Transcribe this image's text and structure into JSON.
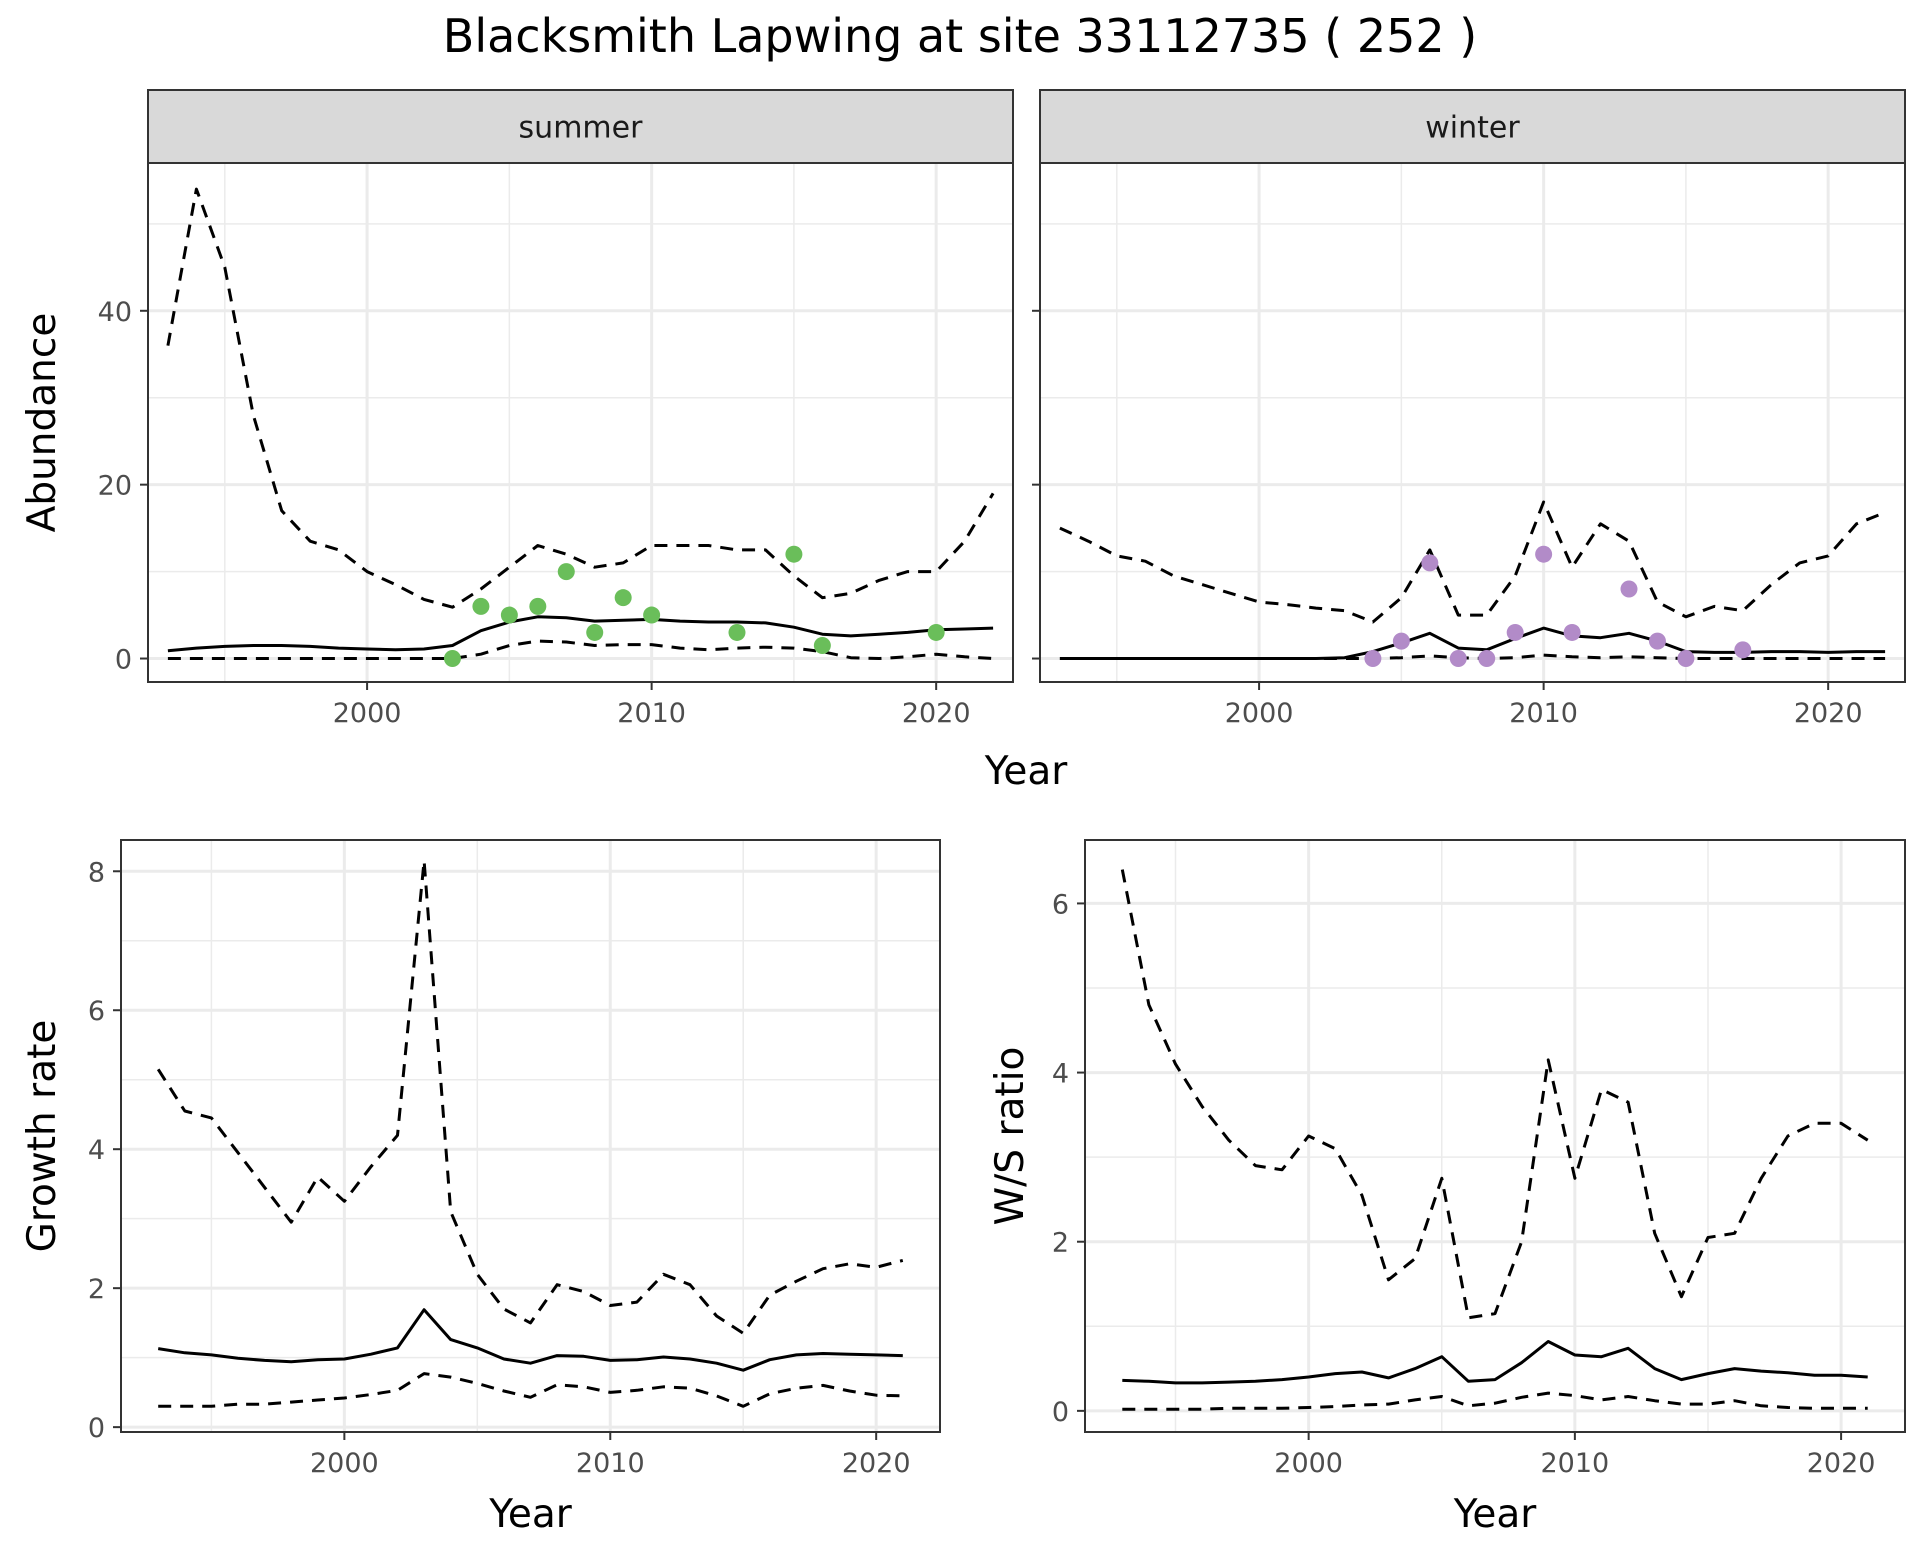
{
  "title": "Blacksmith Lapwing at site 33112735 ( 252 )",
  "colors": {
    "summer_points": "#6ABE5A",
    "winter_points": "#B28BC8",
    "line": "#000000",
    "grid": "#ebebeb",
    "strip_bg": "#d9d9d9"
  },
  "chart_data": [
    {
      "type": "line",
      "panel": "abundance-summer",
      "facet": "summer",
      "xlabel": "Year",
      "ylabel": "Abundance",
      "xlim": [
        1992.3,
        2022.7
      ],
      "ylim": [
        -2.7,
        57
      ],
      "xticks": [
        2000,
        2010,
        2020
      ],
      "yticks": [
        0,
        20,
        40
      ],
      "grid": true,
      "series": [
        {
          "role": "mean",
          "style": "solid",
          "x": [
            1993,
            1994,
            1995,
            1996,
            1997,
            1998,
            1999,
            2000,
            2001,
            2002,
            2003,
            2004,
            2005,
            2006,
            2007,
            2008,
            2009,
            2010,
            2011,
            2012,
            2013,
            2014,
            2015,
            2016,
            2017,
            2018,
            2019,
            2020,
            2021,
            2022
          ],
          "y": [
            0.9,
            1.2,
            1.4,
            1.5,
            1.5,
            1.4,
            1.2,
            1.1,
            1.0,
            1.1,
            1.5,
            3.2,
            4.2,
            4.8,
            4.7,
            4.3,
            4.4,
            4.5,
            4.3,
            4.2,
            4.2,
            4.1,
            3.6,
            2.8,
            2.6,
            2.8,
            3.0,
            3.3,
            3.4,
            3.5
          ]
        },
        {
          "role": "upper",
          "style": "dashed",
          "x": [
            1993,
            1994,
            1995,
            1996,
            1997,
            1998,
            1999,
            2000,
            2001,
            2002,
            2003,
            2004,
            2005,
            2006,
            2007,
            2008,
            2009,
            2010,
            2011,
            2012,
            2013,
            2014,
            2015,
            2016,
            2017,
            2018,
            2019,
            2020,
            2021,
            2022
          ],
          "y": [
            36,
            54,
            45,
            28,
            17,
            13.5,
            12.5,
            10,
            8.5,
            6.8,
            5.9,
            8.0,
            10.5,
            13,
            12,
            10.5,
            11,
            13,
            13,
            13,
            12.5,
            12.5,
            9.5,
            7,
            7.5,
            9,
            10,
            10,
            13.5,
            19
          ]
        },
        {
          "role": "lower",
          "style": "dashed",
          "x": [
            1993,
            1994,
            1995,
            1996,
            1997,
            1998,
            1999,
            2000,
            2001,
            2002,
            2003,
            2004,
            2005,
            2006,
            2007,
            2008,
            2009,
            2010,
            2011,
            2012,
            2013,
            2014,
            2015,
            2016,
            2017,
            2018,
            2019,
            2020,
            2021,
            2022
          ],
          "y": [
            0,
            0,
            0,
            0,
            0,
            0,
            0,
            0,
            0,
            0,
            0,
            0.5,
            1.5,
            2,
            1.9,
            1.5,
            1.6,
            1.6,
            1.2,
            1.0,
            1.2,
            1.3,
            1.2,
            0.8,
            0.1,
            0,
            0.2,
            0.5,
            0.2,
            0
          ]
        }
      ],
      "points": {
        "x": [
          2003,
          2004,
          2005,
          2006,
          2007,
          2008,
          2009,
          2010,
          2013,
          2015,
          2016,
          2020
        ],
        "y": [
          0,
          6,
          5,
          6,
          10,
          3,
          7,
          5,
          3,
          12,
          1.5,
          3
        ]
      }
    },
    {
      "type": "line",
      "panel": "abundance-winter",
      "facet": "winter",
      "xlabel": "Year",
      "ylabel": "Abundance",
      "xlim": [
        1992.3,
        2022.7
      ],
      "ylim": [
        -2.7,
        57
      ],
      "xticks": [
        2000,
        2010,
        2020
      ],
      "yticks": [
        0,
        20,
        40
      ],
      "grid": true,
      "series": [
        {
          "role": "mean",
          "style": "solid",
          "x": [
            1993,
            1994,
            1995,
            1996,
            1997,
            1998,
            1999,
            2000,
            2001,
            2002,
            2003,
            2004,
            2005,
            2006,
            2007,
            2008,
            2009,
            2010,
            2011,
            2012,
            2013,
            2014,
            2015,
            2016,
            2017,
            2018,
            2019,
            2020,
            2021,
            2022
          ],
          "y": [
            0,
            0,
            0,
            0,
            0,
            0,
            0,
            0,
            0,
            0,
            0.1,
            0.8,
            1.8,
            2.9,
            1.2,
            1.0,
            2.3,
            3.5,
            2.6,
            2.4,
            2.9,
            2.0,
            0.8,
            0.7,
            0.7,
            0.8,
            0.8,
            0.7,
            0.8,
            0.8
          ]
        },
        {
          "role": "upper",
          "style": "dashed",
          "x": [
            1993,
            1994,
            1995,
            1996,
            1997,
            1998,
            1999,
            2000,
            2001,
            2002,
            2003,
            2004,
            2005,
            2006,
            2007,
            2008,
            2009,
            2010,
            2011,
            2012,
            2013,
            2014,
            2015,
            2016,
            2017,
            2018,
            2019,
            2020,
            2021,
            2022
          ],
          "y": [
            15,
            13.5,
            11.8,
            11.2,
            9.5,
            8.5,
            7.5,
            6.5,
            6.2,
            5.8,
            5.5,
            4.2,
            7.0,
            12.5,
            5.0,
            5.0,
            9.5,
            18,
            10.5,
            15.5,
            13.5,
            6.5,
            4.8,
            6.0,
            5.5,
            8.5,
            11,
            11.8,
            15.5,
            16.8
          ]
        },
        {
          "role": "lower",
          "style": "dashed",
          "x": [
            1993,
            1994,
            1995,
            1996,
            1997,
            1998,
            1999,
            2000,
            2001,
            2002,
            2003,
            2004,
            2005,
            2006,
            2007,
            2008,
            2009,
            2010,
            2011,
            2012,
            2013,
            2014,
            2015,
            2016,
            2017,
            2018,
            2019,
            2020,
            2021,
            2022
          ],
          "y": [
            0,
            0,
            0,
            0,
            0,
            0,
            0,
            0,
            0,
            0,
            0,
            0,
            0.1,
            0.3,
            0.1,
            0,
            0.1,
            0.4,
            0.2,
            0.1,
            0.2,
            0.1,
            0,
            0,
            0,
            0,
            0,
            0,
            0,
            0
          ]
        }
      ],
      "points": {
        "x": [
          2004,
          2005,
          2006,
          2007,
          2008,
          2009,
          2010,
          2011,
          2013,
          2014,
          2015,
          2017
        ],
        "y": [
          0,
          2,
          11,
          0,
          0,
          3,
          12,
          3,
          8,
          2,
          0,
          1
        ]
      }
    },
    {
      "type": "line",
      "panel": "growth-rate",
      "xlabel": "Year",
      "ylabel": "Growth rate",
      "xlim": [
        1991.6,
        2022.4
      ],
      "ylim": [
        -0.07,
        8.45
      ],
      "xticks": [
        2000,
        2010,
        2020
      ],
      "yticks": [
        0,
        2,
        4,
        6,
        8
      ],
      "grid": true,
      "series": [
        {
          "role": "mean",
          "style": "solid",
          "x": [
            1993,
            1994,
            1995,
            1996,
            1997,
            1998,
            1999,
            2000,
            2001,
            2002,
            2003,
            2004,
            2005,
            2006,
            2007,
            2008,
            2009,
            2010,
            2011,
            2012,
            2013,
            2014,
            2015,
            2016,
            2017,
            2018,
            2019,
            2020,
            2021
          ],
          "y": [
            1.13,
            1.07,
            1.04,
            0.99,
            0.96,
            0.94,
            0.97,
            0.98,
            1.05,
            1.14,
            1.69,
            1.26,
            1.14,
            0.98,
            0.92,
            1.03,
            1.02,
            0.96,
            0.97,
            1.01,
            0.98,
            0.92,
            0.82,
            0.97,
            1.04,
            1.06,
            1.05,
            1.04,
            1.03
          ]
        },
        {
          "role": "upper",
          "style": "dashed",
          "x": [
            1993,
            1994,
            1995,
            1996,
            1997,
            1998,
            1999,
            2000,
            2001,
            2002,
            2003,
            2004,
            2005,
            2006,
            2007,
            2008,
            2009,
            2010,
            2011,
            2012,
            2013,
            2014,
            2015,
            2016,
            2017,
            2018,
            2019,
            2020,
            2021
          ],
          "y": [
            5.15,
            4.55,
            4.45,
            3.95,
            3.45,
            2.95,
            3.6,
            3.25,
            3.75,
            4.2,
            8.15,
            3.1,
            2.2,
            1.7,
            1.5,
            2.05,
            1.95,
            1.75,
            1.8,
            2.2,
            2.05,
            1.6,
            1.35,
            1.9,
            2.1,
            2.28,
            2.35,
            2.3,
            2.4
          ]
        },
        {
          "role": "lower",
          "style": "dashed",
          "x": [
            1993,
            1994,
            1995,
            1996,
            1997,
            1998,
            1999,
            2000,
            2001,
            2002,
            2003,
            2004,
            2005,
            2006,
            2007,
            2008,
            2009,
            2010,
            2011,
            2012,
            2013,
            2014,
            2015,
            2016,
            2017,
            2018,
            2019,
            2020,
            2021
          ],
          "y": [
            0.3,
            0.3,
            0.3,
            0.33,
            0.33,
            0.36,
            0.39,
            0.42,
            0.47,
            0.53,
            0.77,
            0.72,
            0.63,
            0.52,
            0.43,
            0.61,
            0.58,
            0.5,
            0.53,
            0.58,
            0.56,
            0.45,
            0.3,
            0.48,
            0.56,
            0.6,
            0.52,
            0.46,
            0.45
          ]
        }
      ]
    },
    {
      "type": "line",
      "panel": "ws-ratio",
      "xlabel": "Year",
      "ylabel": "W/S ratio",
      "xlim": [
        1991.6,
        2022.4
      ],
      "ylim": [
        -0.25,
        6.75
      ],
      "xticks": [
        2000,
        2010,
        2020
      ],
      "yticks": [
        0,
        2,
        4,
        6
      ],
      "grid": true,
      "series": [
        {
          "role": "mean",
          "style": "solid",
          "x": [
            1993,
            1994,
            1995,
            1996,
            1997,
            1998,
            1999,
            2000,
            2001,
            2002,
            2003,
            2004,
            2005,
            2006,
            2007,
            2008,
            2009,
            2010,
            2011,
            2012,
            2013,
            2014,
            2015,
            2016,
            2017,
            2018,
            2019,
            2020,
            2021
          ],
          "y": [
            0.36,
            0.35,
            0.33,
            0.33,
            0.34,
            0.35,
            0.37,
            0.4,
            0.44,
            0.46,
            0.39,
            0.5,
            0.64,
            0.35,
            0.37,
            0.57,
            0.82,
            0.66,
            0.64,
            0.74,
            0.5,
            0.37,
            0.44,
            0.5,
            0.47,
            0.45,
            0.42,
            0.42,
            0.4
          ]
        },
        {
          "role": "upper",
          "style": "dashed",
          "x": [
            1993,
            1994,
            1995,
            1996,
            1997,
            1998,
            1999,
            2000,
            2001,
            2002,
            2003,
            2004,
            2005,
            2006,
            2007,
            2008,
            2009,
            2010,
            2011,
            2012,
            2013,
            2014,
            2015,
            2016,
            2017,
            2018,
            2019,
            2020,
            2021
          ],
          "y": [
            6.4,
            4.8,
            4.1,
            3.6,
            3.2,
            2.9,
            2.85,
            3.25,
            3.1,
            2.55,
            1.55,
            1.8,
            2.75,
            1.1,
            1.15,
            2.0,
            4.15,
            2.75,
            3.8,
            3.65,
            2.1,
            1.35,
            2.05,
            2.1,
            2.75,
            3.25,
            3.4,
            3.4,
            3.2
          ]
        },
        {
          "role": "lower",
          "style": "dashed",
          "x": [
            1993,
            1994,
            1995,
            1996,
            1997,
            1998,
            1999,
            2000,
            2001,
            2002,
            2003,
            2004,
            2005,
            2006,
            2007,
            2008,
            2009,
            2010,
            2011,
            2012,
            2013,
            2014,
            2015,
            2016,
            2017,
            2018,
            2019,
            2020,
            2021
          ],
          "y": [
            0.02,
            0.02,
            0.02,
            0.02,
            0.03,
            0.03,
            0.03,
            0.04,
            0.05,
            0.07,
            0.08,
            0.13,
            0.17,
            0.06,
            0.09,
            0.16,
            0.21,
            0.18,
            0.13,
            0.17,
            0.12,
            0.08,
            0.08,
            0.12,
            0.06,
            0.04,
            0.03,
            0.03,
            0.03
          ]
        }
      ]
    }
  ]
}
